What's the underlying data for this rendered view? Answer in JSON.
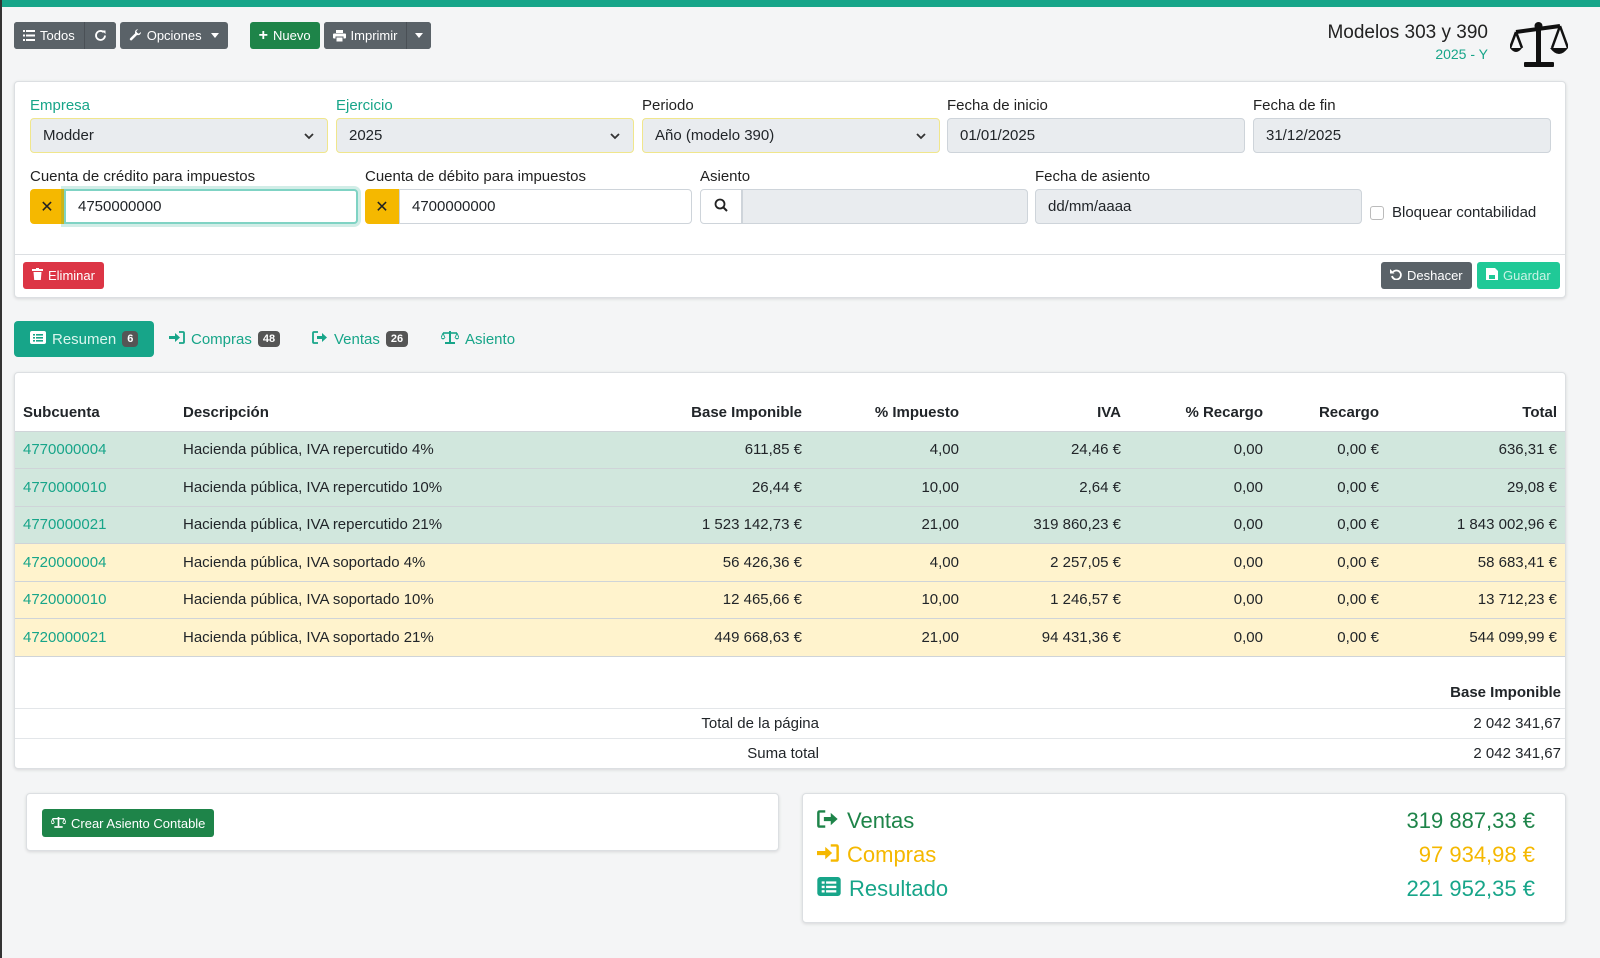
{
  "toolbar": {
    "todos_label": "Todos",
    "opciones_label": "Opciones",
    "nuevo_label": "Nuevo",
    "imprimir_label": "Imprimir"
  },
  "header": {
    "title": "Modelos 303 y 390",
    "subtitle": "2025 - Y"
  },
  "form": {
    "empresa_label": "Empresa",
    "empresa_value": "Modder",
    "ejercicio_label": "Ejercicio",
    "ejercicio_value": "2025",
    "periodo_label": "Periodo",
    "periodo_value": "Año (modelo 390)",
    "fecha_inicio_label": "Fecha de inicio",
    "fecha_inicio_value": "01/01/2025",
    "fecha_fin_label": "Fecha de fin",
    "fecha_fin_value": "31/12/2025",
    "credito_label": "Cuenta de crédito para impuestos",
    "credito_value": "4750000000",
    "debito_label": "Cuenta de débito para impuestos",
    "debito_value": "4700000000",
    "asiento_label": "Asiento",
    "asiento_value": "",
    "fecha_asiento_label": "Fecha de asiento",
    "fecha_asiento_placeholder": "dd/mm/aaaa",
    "bloquear_label": "Bloquear contabilidad",
    "eliminar_label": "Eliminar",
    "deshacer_label": "Deshacer",
    "guardar_label": "Guardar"
  },
  "tabs": [
    {
      "label": "Resumen",
      "badge": "6"
    },
    {
      "label": "Compras",
      "badge": "48"
    },
    {
      "label": "Ventas",
      "badge": "26"
    },
    {
      "label": "Asiento",
      "badge": ""
    }
  ],
  "table": {
    "headers": [
      "Subcuenta",
      "Descripción",
      "Base Imponible",
      "% Impuesto",
      "IVA",
      "% Recargo",
      "Recargo",
      "Total"
    ],
    "rows": [
      {
        "subcuenta": "4770000004",
        "descripcion": "Hacienda pública, IVA repercutido 4%",
        "base": "611,85 €",
        "impuesto": "4,00",
        "iva": "24,46 €",
        "precargo": "0,00",
        "recargo": "0,00 €",
        "total": "636,31 €",
        "type": "teal"
      },
      {
        "subcuenta": "4770000010",
        "descripcion": "Hacienda pública, IVA repercutido 10%",
        "base": "26,44 €",
        "impuesto": "10,00",
        "iva": "2,64 €",
        "precargo": "0,00",
        "recargo": "0,00 €",
        "total": "29,08 €",
        "type": "teal"
      },
      {
        "subcuenta": "4770000021",
        "descripcion": "Hacienda pública, IVA repercutido 21%",
        "base": "1 523 142,73 €",
        "impuesto": "21,00",
        "iva": "319 860,23 €",
        "precargo": "0,00",
        "recargo": "0,00 €",
        "total": "1 843 002,96 €",
        "type": "teal"
      },
      {
        "subcuenta": "4720000004",
        "descripcion": "Hacienda pública, IVA soportado 4%",
        "base": "56 426,36 €",
        "impuesto": "4,00",
        "iva": "2 257,05 €",
        "precargo": "0,00",
        "recargo": "0,00 €",
        "total": "58 683,41 €",
        "type": "yellow"
      },
      {
        "subcuenta": "4720000010",
        "descripcion": "Hacienda pública, IVA soportado 10%",
        "base": "12 465,66 €",
        "impuesto": "10,00",
        "iva": "1 246,57 €",
        "precargo": "0,00",
        "recargo": "0,00 €",
        "total": "13 712,23 €",
        "type": "yellow"
      },
      {
        "subcuenta": "4720000021",
        "descripcion": "Hacienda pública, IVA soportado 21%",
        "base": "449 668,63 €",
        "impuesto": "21,00",
        "iva": "94 431,36 €",
        "precargo": "0,00",
        "recargo": "0,00 €",
        "total": "544 099,99 €",
        "type": "yellow"
      }
    ],
    "footer_header": "Base Imponible",
    "page_total_label": "Total de la página",
    "page_total_value": "2 042 341,67",
    "grand_total_label": "Suma total",
    "grand_total_value": "2 042 341,67"
  },
  "actions": {
    "crear_asiento_label": "Crear Asiento Contable"
  },
  "summary": {
    "ventas_label": "Ventas",
    "ventas_value": "319 887,33 €",
    "compras_label": "Compras",
    "compras_value": "97 934,98 €",
    "resultado_label": "Resultado",
    "resultado_value": "221 952,35 €"
  },
  "colors": {
    "accent": "#17a589",
    "warning": "#f5b800",
    "dark_green": "#1e8449"
  }
}
